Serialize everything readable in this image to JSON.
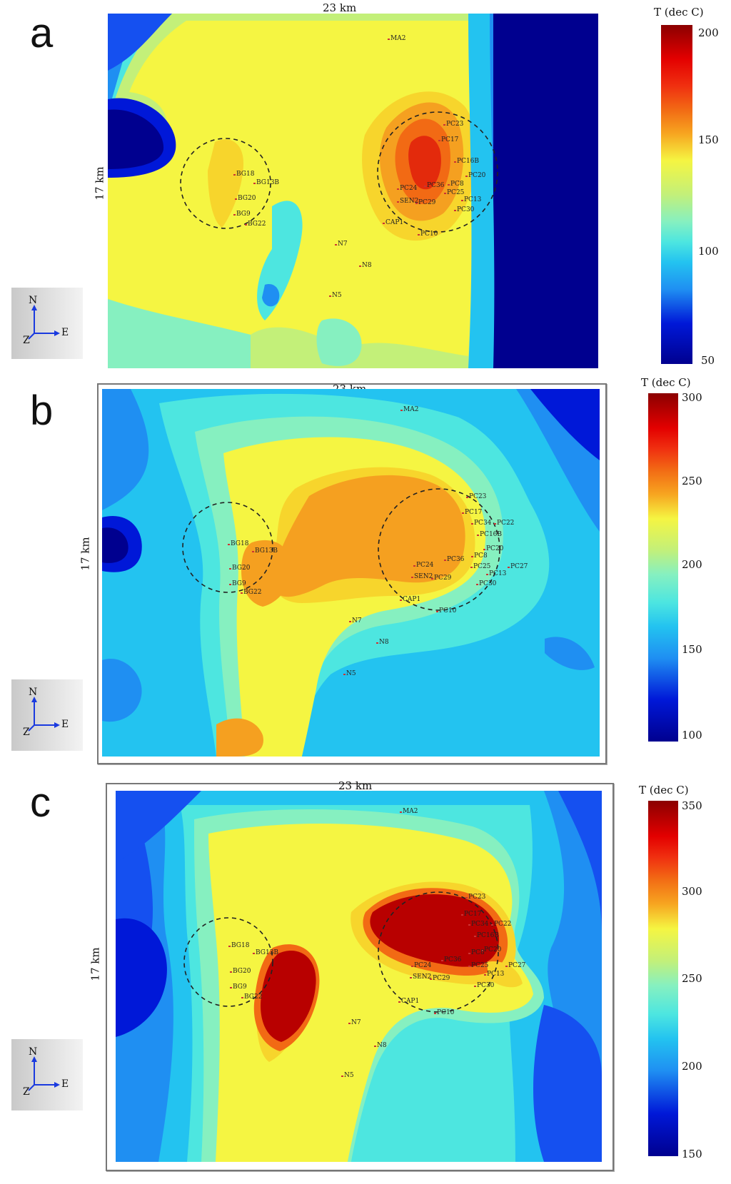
{
  "panels": [
    {
      "letter": "a",
      "dim_top": "23 km",
      "dim_side": "17 km",
      "colorbar": {
        "title": "T (dec C)",
        "ticks": [
          "200",
          "150",
          "100",
          "50"
        ]
      },
      "compass": {
        "north": "N",
        "east": "E",
        "z": "Z"
      }
    },
    {
      "letter": "b",
      "dim_top": "23 km",
      "dim_side": "17 km",
      "colorbar": {
        "title": "T (dec C)",
        "ticks": [
          "300",
          "250",
          "200",
          "150",
          "100"
        ]
      },
      "compass": {
        "north": "N",
        "east": "E",
        "z": "Z"
      }
    },
    {
      "letter": "c",
      "dim_top": "23 km",
      "dim_side": "17 km",
      "colorbar": {
        "title": "T (dec C)",
        "ticks": [
          "350",
          "300",
          "250",
          "200",
          "150"
        ]
      },
      "compass": {
        "north": "N",
        "east": "E",
        "z": "Z"
      }
    }
  ],
  "wells": [
    "MA2",
    "PC23",
    "PC17",
    "PC34",
    "PC22",
    "PC16B",
    "PC20",
    "PC8",
    "PC36",
    "PC24",
    "PC25",
    "PC13",
    "PC27",
    "SEN2",
    "PC29",
    "PC30",
    "CAP1",
    "PC10",
    "BG18",
    "BG13B",
    "BG20",
    "BG9",
    "BG22",
    "N7",
    "N8",
    "N5"
  ],
  "colors": {
    "scale": [
      "#00008f",
      "#0018d8",
      "#1550f0",
      "#1f8ff2",
      "#23c3f0",
      "#4de6e0",
      "#86f0c0",
      "#c3f079",
      "#f5f542",
      "#f7d52c",
      "#f5a020",
      "#f26a14",
      "#e32a0c",
      "#b80000",
      "#8b0000"
    ]
  }
}
